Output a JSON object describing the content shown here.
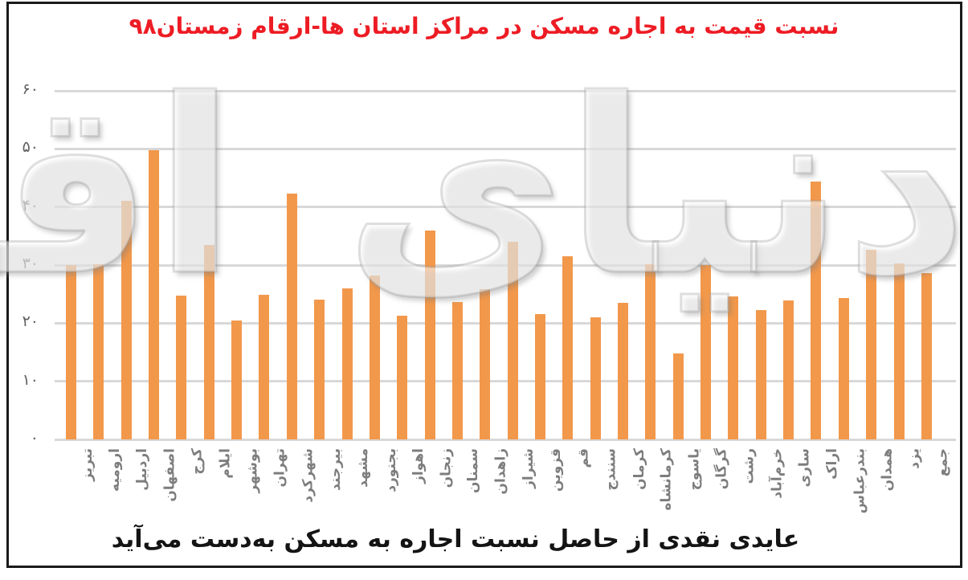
{
  "page": {
    "background": "#FFFFFF",
    "frame_border_color": "#1A1A1A"
  },
  "title": {
    "text": "نسبت قیمت به اجاره مسکن در مراکز استان ها-ارقام زمستان۹۸",
    "color": "#ED1C24"
  },
  "caption": {
    "text": "عایدی نقدی از حاصل نسبت اجاره به مسکن به‌دست می‌آید"
  },
  "watermark": {
    "text": "دنیای اقتصاد"
  },
  "chart_data": {
    "type": "bar",
    "title": "نسبت قیمت به اجاره مسکن در مراکز استان ها-ارقام زمستان۹۸",
    "categories": [
      "تبریز",
      "ارومیه",
      "اردبیل",
      "اصفهان",
      "کرج",
      "ایلام",
      "بوشهر",
      "تهران",
      "شهرکرد",
      "بیرجند",
      "مشهد",
      "بجنورد",
      "اهواز",
      "زنجان",
      "سمنان",
      "زاهدان",
      "شیراز",
      "قزوین",
      "قم",
      "سنندج",
      "کرمان",
      "کرمانشاه",
      "یاسوج",
      "گرگان",
      "رشت",
      "خرم‌آباد",
      "ساری",
      "اراک",
      "بندرعباس",
      "همدان",
      "یزد",
      "جمع"
    ],
    "values": [
      30,
      30.2,
      41,
      49.8,
      24.7,
      33.4,
      20.5,
      24.9,
      42.3,
      24.1,
      26,
      28.2,
      21.3,
      36,
      23.6,
      25.9,
      34,
      21.6,
      31.5,
      21,
      23.5,
      30.2,
      14.8,
      30,
      24.6,
      22.2,
      23.9,
      44.4,
      24.3,
      32.6,
      30.3,
      28.6
    ],
    "xlabel": "",
    "ylabel": "",
    "ylim": [
      0,
      60
    ],
    "yticks": [
      0,
      10,
      20,
      30,
      40,
      50,
      60
    ],
    "ytick_labels": [
      "۰",
      "۱۰",
      "۲۰",
      "۳۰",
      "۴۰",
      "۵۰",
      "۶۰"
    ],
    "bar_color": "#F2984B",
    "grid": true,
    "gridline_color": "#D8D8D8",
    "axis_label_color": "#606060",
    "category_label_color": "#7D7D7D",
    "legend": "none"
  }
}
